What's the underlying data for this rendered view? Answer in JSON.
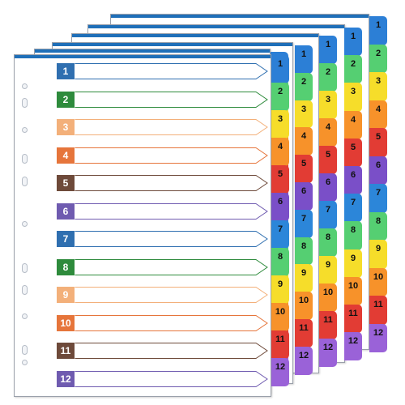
{
  "rows": [
    {
      "label": "1",
      "color": "#2f6fb0"
    },
    {
      "label": "2",
      "color": "#2e8b3c"
    },
    {
      "label": "3",
      "color": "#f3b07a"
    },
    {
      "label": "4",
      "color": "#e6753b"
    },
    {
      "label": "5",
      "color": "#6e4a3a"
    },
    {
      "label": "6",
      "color": "#6f5bb0"
    },
    {
      "label": "7",
      "color": "#2f6fb0"
    },
    {
      "label": "8",
      "color": "#2e8b3c"
    },
    {
      "label": "9",
      "color": "#f3b07a"
    },
    {
      "label": "10",
      "color": "#e6753b"
    },
    {
      "label": "11",
      "color": "#6e4a3a"
    },
    {
      "label": "12",
      "color": "#6f5bb0"
    }
  ],
  "tabs": [
    {
      "label": "1",
      "color": "#2c7fd6"
    },
    {
      "label": "2",
      "color": "#55cf72"
    },
    {
      "label": "3",
      "color": "#f6dd2a"
    },
    {
      "label": "4",
      "color": "#f7922a"
    },
    {
      "label": "5",
      "color": "#e23c34"
    },
    {
      "label": "6",
      "color": "#7a4fc8"
    },
    {
      "label": "7",
      "color": "#2c86d9"
    },
    {
      "label": "8",
      "color": "#55cf72"
    },
    {
      "label": "9",
      "color": "#f6dd2a"
    },
    {
      "label": "10",
      "color": "#f7922a"
    },
    {
      "label": "11",
      "color": "#e23c34"
    },
    {
      "label": "12",
      "color": "#9a62d8"
    }
  ],
  "colors": {
    "sheet_border": "#9aa0aa",
    "sheet_top_bar": "#1f6fb8",
    "row_arrow_stroke": "#9aa0aa"
  }
}
